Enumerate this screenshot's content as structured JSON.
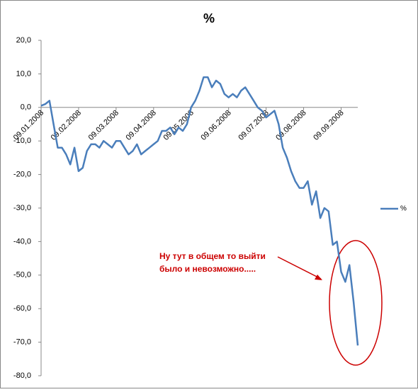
{
  "chart_data": {
    "type": "line",
    "title": "%",
    "categories": [
      "09.01.2008",
      null,
      null,
      null,
      null,
      null,
      null,
      null,
      null,
      "09.02.2008",
      null,
      null,
      null,
      null,
      null,
      null,
      null,
      null,
      "09.03.2008",
      null,
      null,
      null,
      null,
      null,
      null,
      null,
      null,
      "09.04.2008",
      null,
      null,
      null,
      null,
      null,
      null,
      null,
      null,
      "09.05.2008",
      null,
      null,
      null,
      null,
      null,
      null,
      null,
      null,
      "09.06.2008",
      null,
      null,
      null,
      null,
      null,
      null,
      null,
      null,
      "09.07.2008",
      null,
      null,
      null,
      null,
      null,
      null,
      null,
      null,
      "09.08.2008",
      null,
      null,
      null,
      null,
      null,
      null,
      null,
      null,
      "09.09.2008",
      null,
      null,
      null,
      null
    ],
    "series": [
      {
        "name": "%",
        "color": "#4a7ebb",
        "values": [
          0.5,
          1,
          2,
          -5,
          -12,
          -12,
          -14,
          -17,
          -12,
          -19,
          -18,
          -13,
          -11,
          -11,
          -12,
          -10,
          -11,
          -12,
          -10,
          -10,
          -12,
          -14,
          -13,
          -11,
          -14,
          -13,
          -12,
          -11,
          -10,
          -7,
          -7,
          -6,
          -8,
          -6,
          -7,
          -5,
          0,
          2,
          5,
          9,
          9,
          6,
          8,
          7,
          4,
          3,
          4,
          3,
          5,
          6,
          4,
          2,
          0,
          -1,
          -3,
          -2,
          -1,
          -5,
          -12,
          -15,
          -19,
          -22,
          -24,
          -24,
          -22,
          -29,
          -25,
          -33,
          -30,
          -31,
          -41,
          -40,
          -49,
          -52,
          -47,
          -58,
          -71
        ]
      }
    ],
    "ylim": [
      -80,
      20
    ],
    "yticks": [
      {
        "value": -80,
        "label": "-80,0"
      },
      {
        "value": -70,
        "label": "-70,0"
      },
      {
        "value": -60,
        "label": "-60,0"
      },
      {
        "value": -50,
        "label": "-50,0"
      },
      {
        "value": -40,
        "label": "-40,0"
      },
      {
        "value": -30,
        "label": "-30,0"
      },
      {
        "value": -20,
        "label": "-20,0"
      },
      {
        "value": -10,
        "label": "-10,0"
      },
      {
        "value": 0,
        "label": "0,0"
      },
      {
        "value": 10,
        "label": "10,0"
      },
      {
        "value": 20,
        "label": "20,0"
      }
    ],
    "grid": false,
    "legend": "right",
    "annotations": [
      "Ну тут в общем то выйти",
      "было и невозможно....."
    ]
  }
}
